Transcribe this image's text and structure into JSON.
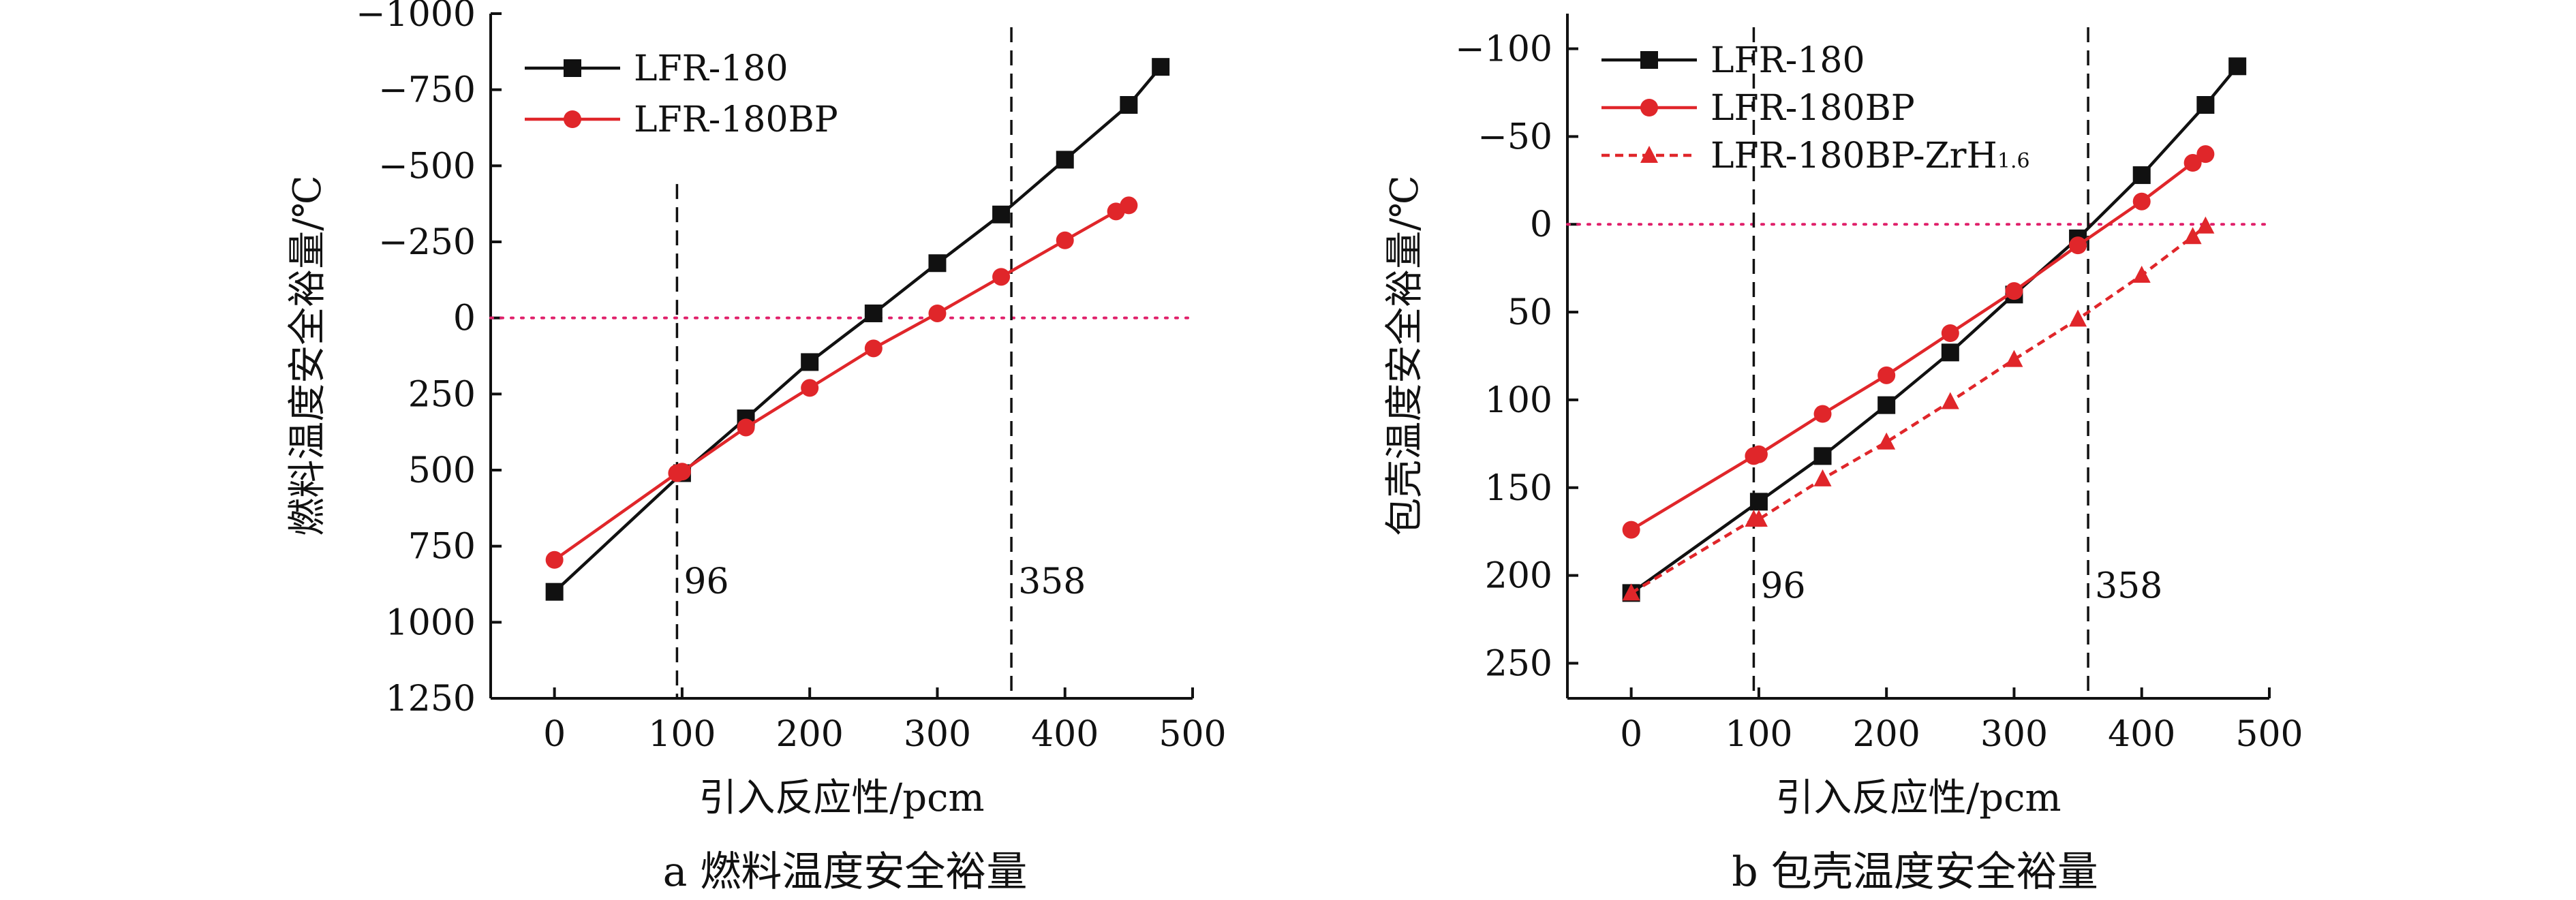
{
  "colors": {
    "lfr180": "#111111",
    "lfr180bp": "#e0262a",
    "zero_line": "#e0206a",
    "axis": "#111111",
    "background": "#ffffff"
  },
  "chart_data": [
    {
      "type": "line",
      "panel": "a",
      "caption": "a  燃料温度安全裕量",
      "xlabel": "引入反应性/pcm",
      "ylabel": "燃料温度安全裕量/℃",
      "xlim": [
        -50,
        500
      ],
      "ylim": [
        1250,
        -1000
      ],
      "y_inverted": true,
      "x_ticks": [
        0,
        100,
        200,
        300,
        400,
        500
      ],
      "x_tick_labels": [
        "0",
        "100",
        "200",
        "300",
        "400",
        "500"
      ],
      "y_ticks": [
        -1000,
        -750,
        -500,
        -250,
        0,
        250,
        500,
        750,
        1000,
        1250
      ],
      "y_tick_labels": [
        "−1000",
        "−750",
        "−500",
        "−250",
        "0",
        "250",
        "500",
        "750",
        "1000",
        "1250"
      ],
      "zero_line": 0,
      "ref_lines": [
        {
          "x": 96,
          "label": "96"
        },
        {
          "x": 358,
          "label": "358"
        }
      ],
      "legend_position": "top-left",
      "series": [
        {
          "name": "LFR-180",
          "color": "#111111",
          "marker": "square",
          "style": "solid",
          "x": [
            0,
            100,
            150,
            200,
            250,
            300,
            350,
            400,
            450,
            475
          ],
          "y": [
            900,
            510,
            330,
            145,
            -15,
            -180,
            -340,
            -520,
            -700,
            -825
          ]
        },
        {
          "name": "LFR-180BP",
          "color": "#e0262a",
          "marker": "circle",
          "style": "solid",
          "x": [
            0,
            96,
            100,
            150,
            200,
            250,
            300,
            350,
            400,
            440,
            450
          ],
          "y": [
            795,
            510,
            505,
            360,
            230,
            100,
            -15,
            -135,
            -255,
            -350,
            -370
          ]
        }
      ]
    },
    {
      "type": "line",
      "panel": "b",
      "caption": "b  包壳温度安全裕量",
      "xlabel": "引入反应性/pcm",
      "ylabel": "包壳温度安全裕量/℃",
      "xlim": [
        -50,
        500
      ],
      "ylim": [
        270,
        -120
      ],
      "y_inverted": true,
      "x_ticks": [
        0,
        100,
        200,
        300,
        400,
        500
      ],
      "x_tick_labels": [
        "0",
        "100",
        "200",
        "300",
        "400",
        "500"
      ],
      "y_ticks": [
        -100,
        -50,
        0,
        50,
        100,
        150,
        200,
        250
      ],
      "y_tick_labels": [
        "−100",
        "−50",
        "0",
        "50",
        "100",
        "150",
        "200",
        "250"
      ],
      "zero_line": 0,
      "ref_lines": [
        {
          "x": 96,
          "label": "96"
        },
        {
          "x": 358,
          "label": "358"
        }
      ],
      "legend_position": "top-left",
      "series": [
        {
          "name": "LFR-180",
          "color": "#111111",
          "marker": "square",
          "style": "solid",
          "x": [
            0,
            100,
            150,
            200,
            250,
            300,
            350,
            400,
            450,
            475
          ],
          "y": [
            210,
            158,
            132,
            103,
            73,
            40,
            8,
            -28,
            -68,
            -90
          ]
        },
        {
          "name": "LFR-180BP",
          "color": "#e0262a",
          "marker": "circle",
          "style": "solid",
          "x": [
            0,
            96,
            100,
            150,
            200,
            250,
            300,
            350,
            400,
            440,
            450
          ],
          "y": [
            174,
            132,
            131,
            108,
            86,
            62,
            38,
            12,
            -13,
            -35,
            -40
          ]
        },
        {
          "name": "LFR-180BP-ZrH",
          "name_sub": "1.6",
          "color": "#e0262a",
          "marker": "triangle",
          "style": "dashed",
          "x": [
            0,
            96,
            100,
            150,
            200,
            250,
            300,
            350,
            400,
            440,
            450
          ],
          "y": [
            210,
            168,
            168,
            145,
            124,
            101,
            77,
            54,
            29,
            7,
            1
          ]
        }
      ]
    }
  ]
}
